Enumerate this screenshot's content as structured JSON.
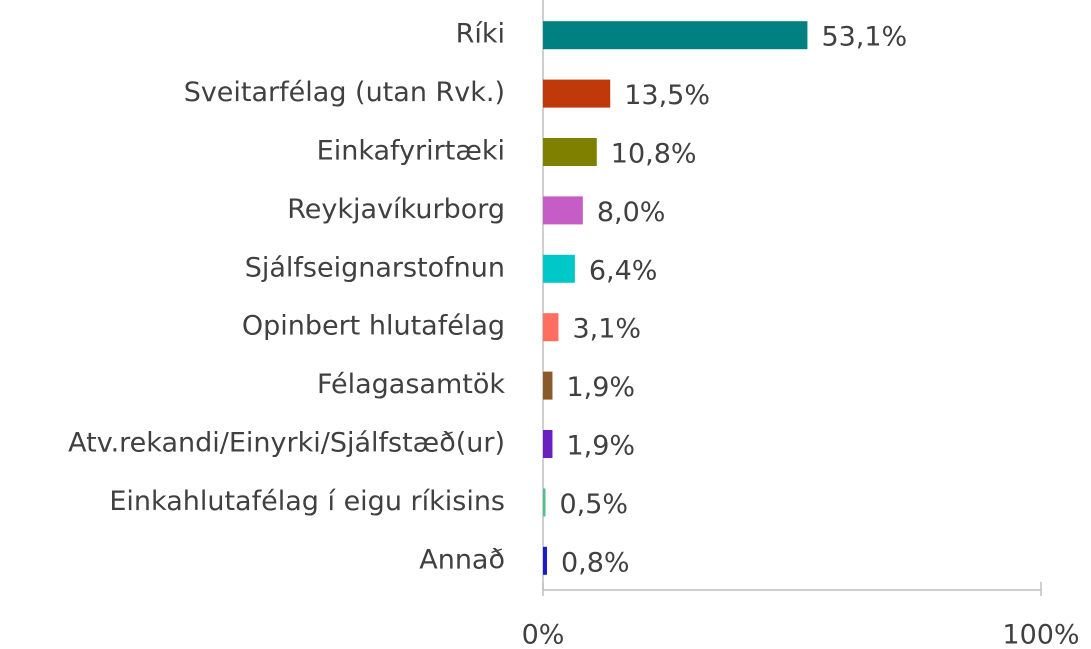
{
  "chart_data": {
    "type": "barh",
    "categories": [
      "Ríki",
      "Sveitarfélag (utan Rvk.)",
      "Einkafyrirtæki",
      "Reykjavíkurborg",
      "Sjálfseignarstofnun",
      "Opinbert hlutafélag",
      "Félagasamtök",
      "Atv.rekandi/Einyrki/Sjálfstæð(ur)",
      "Einkahlutafélag í eigu ríkisins",
      "Annað"
    ],
    "values": [
      53.1,
      13.5,
      10.8,
      8.0,
      6.4,
      3.1,
      1.9,
      1.9,
      0.5,
      0.8
    ],
    "value_labels": [
      "53,1%",
      "13,5%",
      "10,8%",
      "8,0%",
      "6,4%",
      "3,1%",
      "1,9%",
      "1,9%",
      "0,5%",
      "0,8%"
    ],
    "colors": [
      "#008080",
      "#c0390b",
      "#808000",
      "#c65cc6",
      "#00c8c8",
      "#ff6e5e",
      "#8b5a2b",
      "#6a1fc0",
      "#4cc38a",
      "#1a1ad0"
    ],
    "xlim": [
      0,
      100
    ],
    "xticks": [
      {
        "value": 0,
        "label": "0%"
      },
      {
        "value": 100,
        "label": "100%"
      }
    ]
  }
}
